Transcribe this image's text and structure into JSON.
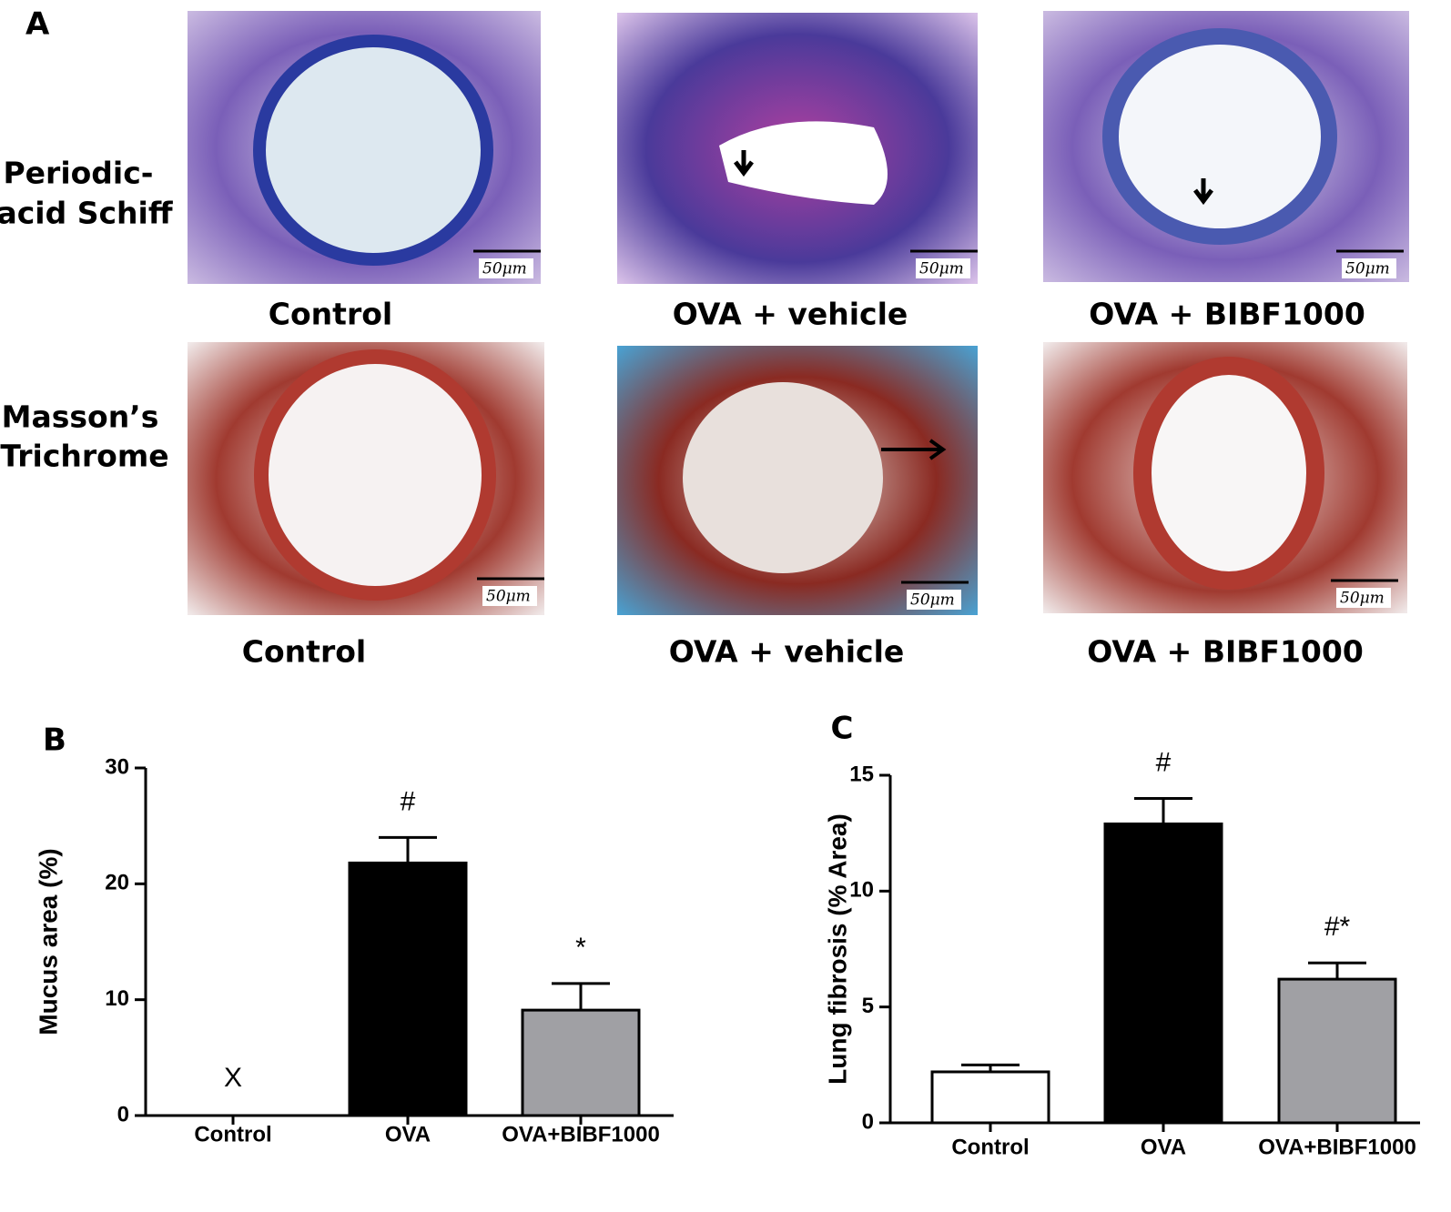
{
  "panel_a": {
    "label": "A",
    "rows": [
      {
        "stain": [
          "Periodic-",
          "acid Schiff"
        ],
        "captions": [
          "Control",
          "OVA + vehicle",
          "OVA + BIBF1000"
        ]
      },
      {
        "stain": [
          "Masson’s",
          "Trichrome"
        ],
        "captions": [
          "Control",
          "OVA + vehicle",
          "OVA + BIBF1000"
        ]
      }
    ],
    "scale_bar": "50μm"
  },
  "chart_data": [
    {
      "type": "bar",
      "panel": "B",
      "ylabel": "Mucus area (%)",
      "categories": [
        "Control",
        "OVA",
        "OVA+BIBF1000"
      ],
      "values": [
        null,
        21.8,
        9.1
      ],
      "errors": [
        null,
        2.2,
        2.3
      ],
      "annotations": [
        "X",
        "#",
        "*"
      ],
      "colors": [
        "#ffffff",
        "#000000",
        "#a0a0a4"
      ],
      "ylim": [
        0,
        30
      ],
      "yticks": [
        0,
        10,
        20,
        30
      ]
    },
    {
      "type": "bar",
      "panel": "C",
      "ylabel": "Lung fibrosis (% Area)",
      "categories": [
        "Control",
        "OVA",
        "OVA+BIBF1000"
      ],
      "values": [
        2.2,
        12.9,
        6.2
      ],
      "errors": [
        0.3,
        1.1,
        0.7
      ],
      "annotations": [
        null,
        "#",
        "#*"
      ],
      "colors": [
        "#ffffff",
        "#000000",
        "#a0a0a4"
      ],
      "ylim": [
        0,
        15
      ],
      "yticks": [
        0,
        5,
        10,
        15
      ]
    }
  ]
}
